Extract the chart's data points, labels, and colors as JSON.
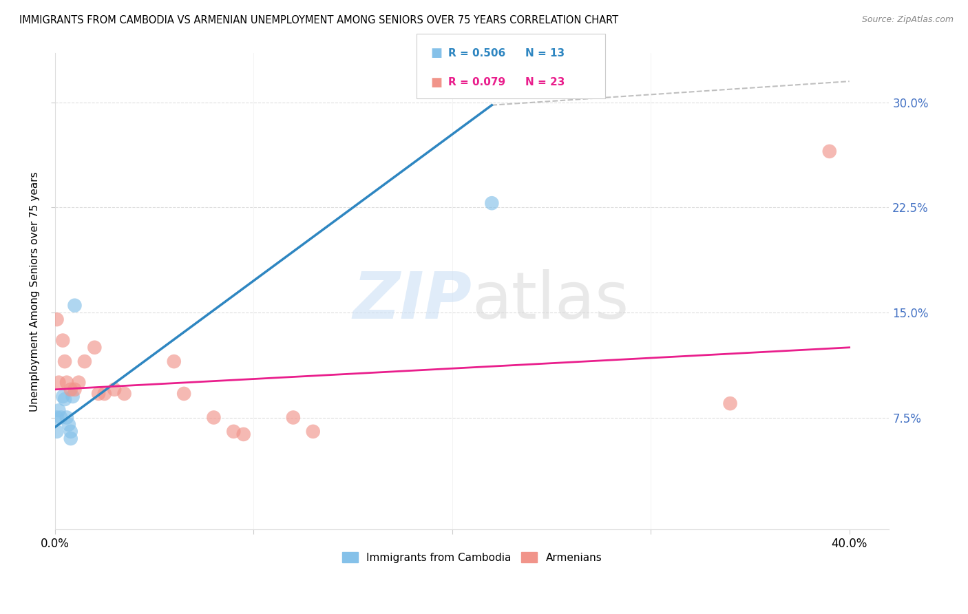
{
  "title": "IMMIGRANTS FROM CAMBODIA VS ARMENIAN UNEMPLOYMENT AMONG SENIORS OVER 75 YEARS CORRELATION CHART",
  "source": "Source: ZipAtlas.com",
  "ylabel": "Unemployment Among Seniors over 75 years",
  "legend1_label": "Immigrants from Cambodia",
  "legend2_label": "Armenians",
  "legend_r1": "R = 0.506",
  "legend_n1": "N = 13",
  "legend_r2": "R = 0.079",
  "legend_n2": "N = 23",
  "color_blue": "#85c1e9",
  "color_pink": "#f1948a",
  "color_blue_line": "#2e86c1",
  "color_pink_line": "#e91e8c",
  "color_dashed": "#b0b0b0",
  "xlim": [
    0.0,
    0.42
  ],
  "ylim": [
    -0.005,
    0.335
  ],
  "ytick_vals": [
    0.075,
    0.15,
    0.225,
    0.3
  ],
  "ytick_labels": [
    "7.5%",
    "15.0%",
    "22.5%",
    "30.0%"
  ],
  "xtick_vals": [
    0.0,
    0.1,
    0.2,
    0.3,
    0.4
  ],
  "xtick_labels": [
    "0.0%",
    "",
    "",
    "",
    "40.0%"
  ],
  "cambodia_x": [
    0.001,
    0.001,
    0.002,
    0.003,
    0.004,
    0.005,
    0.006,
    0.007,
    0.008,
    0.008,
    0.009,
    0.01,
    0.22
  ],
  "cambodia_y": [
    0.075,
    0.065,
    0.08,
    0.075,
    0.09,
    0.088,
    0.075,
    0.07,
    0.065,
    0.06,
    0.09,
    0.155,
    0.228
  ],
  "armenian_x": [
    0.001,
    0.002,
    0.004,
    0.005,
    0.006,
    0.008,
    0.01,
    0.012,
    0.015,
    0.02,
    0.022,
    0.025,
    0.03,
    0.035,
    0.06,
    0.065,
    0.08,
    0.09,
    0.095,
    0.12,
    0.13,
    0.34,
    0.39
  ],
  "armenian_y": [
    0.145,
    0.1,
    0.13,
    0.115,
    0.1,
    0.095,
    0.095,
    0.1,
    0.115,
    0.125,
    0.092,
    0.092,
    0.095,
    0.092,
    0.115,
    0.092,
    0.075,
    0.065,
    0.063,
    0.075,
    0.065,
    0.085,
    0.265
  ],
  "blue_line_x0": 0.0,
  "blue_line_y0": 0.068,
  "blue_line_x1": 0.22,
  "blue_line_y1": 0.298,
  "pink_line_x0": 0.0,
  "pink_line_y0": 0.095,
  "pink_line_x1": 0.4,
  "pink_line_y1": 0.125,
  "dash_line_x0": 0.22,
  "dash_line_y0": 0.298,
  "dash_line_x1": 0.4,
  "dash_line_y1": 0.315
}
